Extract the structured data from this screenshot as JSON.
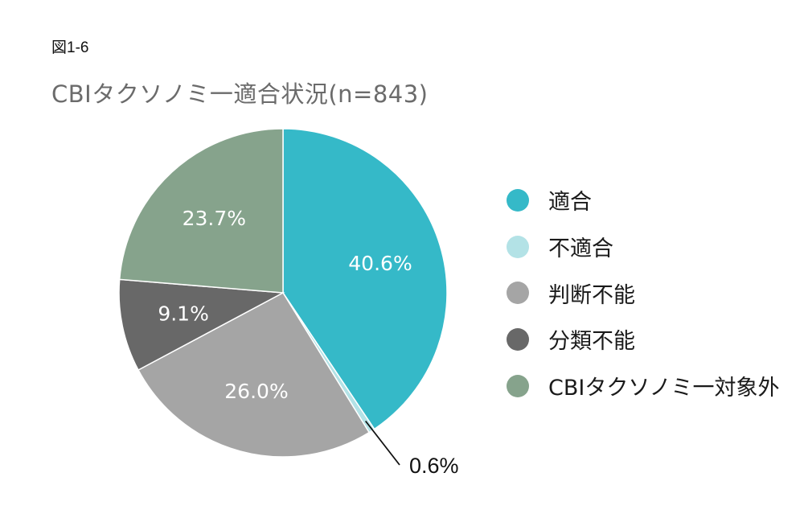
{
  "figure_label": "図1-6",
  "chart_data": {
    "type": "pie",
    "title": "CBIタクソノミ一適合状況(n=843)",
    "slices": [
      {
        "name": "適合",
        "value": 40.6,
        "label": "40.6%",
        "color": "#35b9c8",
        "label_color": "#ffffff"
      },
      {
        "name": "不適合",
        "value": 0.6,
        "label": "0.6%",
        "color": "#b3e2e6",
        "label_color": "#111111",
        "callout": true
      },
      {
        "name": "判断不能",
        "value": 26.0,
        "label": "26.0%",
        "color": "#a5a5a5",
        "label_color": "#ffffff"
      },
      {
        "name": "分類不能",
        "value": 9.1,
        "label": "9.1%",
        "color": "#686868",
        "label_color": "#ffffff"
      },
      {
        "name": "CBIタクソノミ一対象外",
        "value": 23.7,
        "label": "23.7%",
        "color": "#86a38c",
        "label_color": "#ffffff"
      }
    ],
    "legend_position": "right",
    "start_angle": "top",
    "direction": "clockwise"
  }
}
